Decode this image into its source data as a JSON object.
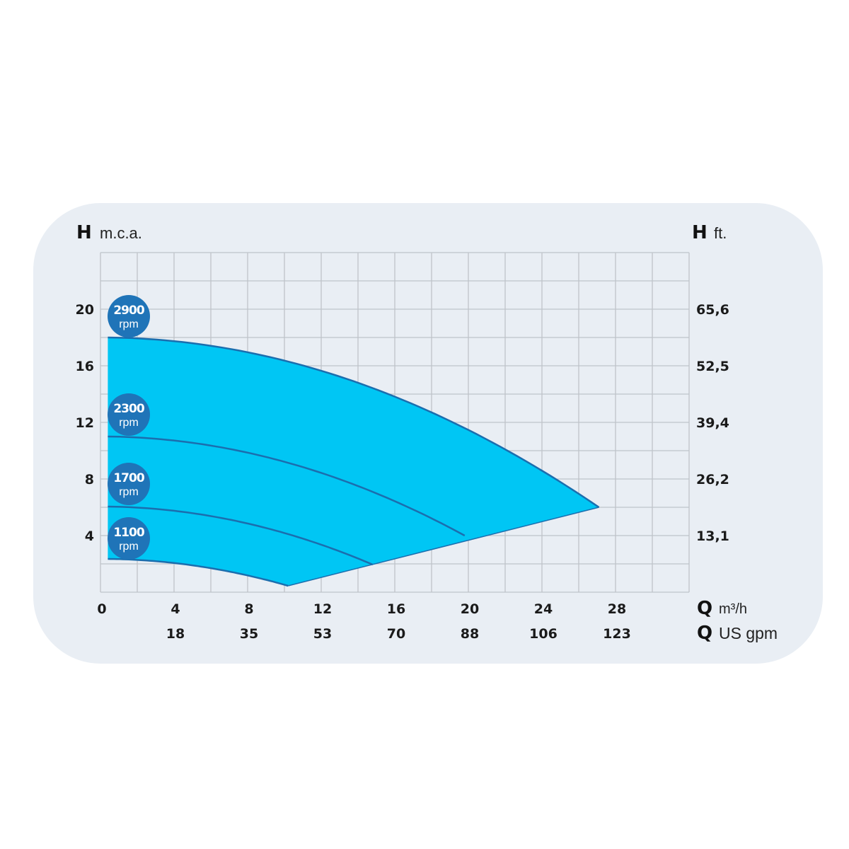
{
  "chart_data": {
    "type": "area",
    "left_axis": {
      "symbol": "H",
      "unit": "m.c.a.",
      "ticks": [
        4,
        8,
        12,
        16,
        20
      ],
      "range": [
        0,
        24
      ]
    },
    "right_axis": {
      "symbol": "H",
      "unit": "ft.",
      "ticks": [
        "13,1",
        "26,2",
        "39,4",
        "52,5",
        "65,6"
      ]
    },
    "x_axis": {
      "symbol": "Q",
      "unit": "m³/h",
      "ticks": [
        0,
        4,
        8,
        12,
        16,
        20,
        24,
        28
      ],
      "range": [
        0,
        32
      ]
    },
    "x_axis_secondary": {
      "symbol": "Q",
      "unit": "US gpm",
      "ticks": [
        "18",
        "35",
        "53",
        "70",
        "88",
        "106",
        "123"
      ]
    },
    "grid": true,
    "colors": {
      "fill": "#00c6f4",
      "curve": "#1b6eae",
      "badge": "#1f74b8",
      "grid": "#bfc4c9",
      "background": "#e9eef4"
    },
    "series": [
      {
        "name": "2900",
        "label": "rpm",
        "points": [
          [
            0.4,
            18.0
          ],
          [
            10,
            16.4
          ],
          [
            20,
            11.5
          ],
          [
            27.1,
            6.0
          ]
        ]
      },
      {
        "name": "2300",
        "label": "rpm",
        "points": [
          [
            0.4,
            11.0
          ],
          [
            10,
            9.2
          ],
          [
            19.8,
            4.0
          ]
        ]
      },
      {
        "name": "1700",
        "label": "rpm",
        "points": [
          [
            0.4,
            6.05
          ],
          [
            10,
            4.2
          ],
          [
            14.8,
            1.95
          ]
        ]
      },
      {
        "name": "1100",
        "label": "rpm",
        "points": [
          [
            0.4,
            2.35
          ],
          [
            5,
            1.9
          ],
          [
            10.2,
            0.45
          ]
        ]
      }
    ],
    "limit_line": [
      [
        10.2,
        0.45
      ],
      [
        27.1,
        6.0
      ]
    ]
  }
}
